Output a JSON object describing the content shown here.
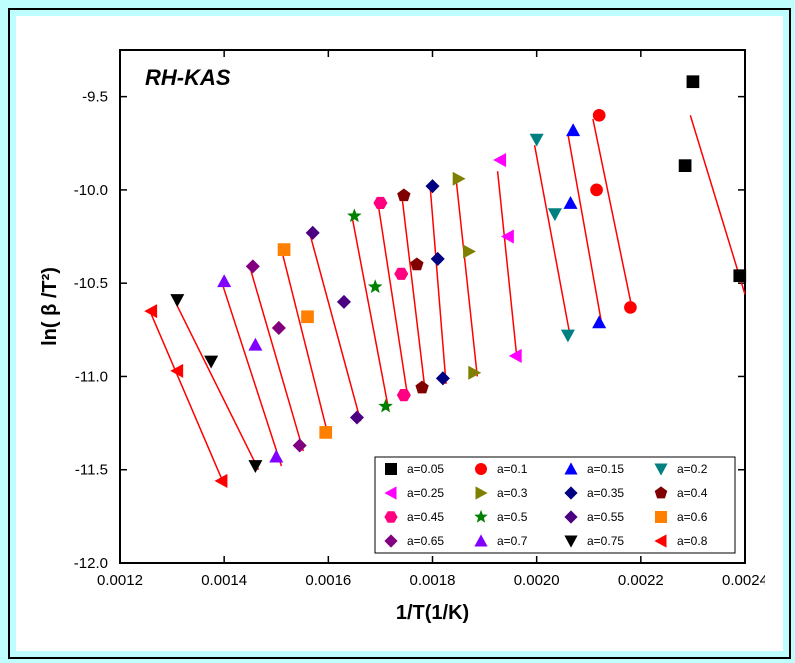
{
  "type": "scatter-with-fit-lines",
  "background_color": "#ffffff",
  "frame_color": "#000000",
  "page_bg": "#befefe",
  "title": "RH-KAS",
  "title_fontstyle": "italic",
  "title_fontweight": "bold",
  "title_fontsize": 22,
  "xlabel": "1/T(1/K)",
  "ylabel": "ln( β /T²)",
  "label_fontsize": 20,
  "tick_fontsize": 15,
  "xlim": [
    0.0012,
    0.0024
  ],
  "ylim": [
    -12.0,
    -9.25
  ],
  "xticks": [
    0.0012,
    0.0014,
    0.0016,
    0.0018,
    0.002,
    0.0022,
    0.0024
  ],
  "yticks": [
    -12.0,
    -11.5,
    -11.0,
    -10.5,
    -10.0,
    -9.5
  ],
  "fit_line_color": "#ff0000",
  "fit_line_width": 1.5,
  "marker_size": 9,
  "series": [
    {
      "label": "a=0.05",
      "marker": "square",
      "color": "#000000",
      "points": [
        [
          0.0023,
          -9.42
        ],
        [
          0.002285,
          -9.87
        ],
        [
          0.00239,
          -10.46
        ]
      ],
      "fit": [
        [
          0.002295,
          -9.6
        ],
        [
          0.0024,
          -10.56
        ]
      ]
    },
    {
      "label": "a=0.1",
      "marker": "circle",
      "color": "#ff0000",
      "points": [
        [
          0.00212,
          -9.6
        ],
        [
          0.002115,
          -10.0
        ],
        [
          0.00218,
          -10.63
        ]
      ],
      "fit": [
        [
          0.002108,
          -9.62
        ],
        [
          0.002182,
          -10.62
        ]
      ]
    },
    {
      "label": "a=0.15",
      "marker": "triangle-up",
      "color": "#0000ff",
      "points": [
        [
          0.00207,
          -9.68
        ],
        [
          0.002065,
          -10.07
        ],
        [
          0.00212,
          -10.71
        ]
      ],
      "fit": [
        [
          0.00206,
          -9.7
        ],
        [
          0.002125,
          -10.72
        ]
      ]
    },
    {
      "label": "a=0.2",
      "marker": "triangle-down",
      "color": "#008080",
      "points": [
        [
          0.002,
          -9.73
        ],
        [
          0.002035,
          -10.13
        ],
        [
          0.00206,
          -10.78
        ]
      ],
      "fit": [
        [
          0.001996,
          -9.76
        ],
        [
          0.002064,
          -10.78
        ]
      ]
    },
    {
      "label": "a=0.25",
      "marker": "triangle-left",
      "color": "#ff00ff",
      "points": [
        [
          0.00193,
          -9.84
        ],
        [
          0.001945,
          -10.25
        ],
        [
          0.00196,
          -10.89
        ]
      ],
      "fit": [
        [
          0.001925,
          -9.9
        ],
        [
          0.001962,
          -10.9
        ]
      ]
    },
    {
      "label": "a=0.3",
      "marker": "triangle-right",
      "color": "#808000",
      "points": [
        [
          0.00185,
          -9.94
        ],
        [
          0.00187,
          -10.33
        ],
        [
          0.00188,
          -10.98
        ]
      ],
      "fit": [
        [
          0.001846,
          -9.96
        ],
        [
          0.001886,
          -11.0
        ]
      ]
    },
    {
      "label": "a=0.35",
      "marker": "diamond",
      "color": "#000080",
      "points": [
        [
          0.0018,
          -9.98
        ],
        [
          0.00181,
          -10.37
        ],
        [
          0.00182,
          -11.01
        ]
      ],
      "fit": [
        [
          0.001796,
          -10.0
        ],
        [
          0.001826,
          -11.04
        ]
      ]
    },
    {
      "label": "a=0.4",
      "marker": "pentagon",
      "color": "#800000",
      "points": [
        [
          0.001745,
          -10.03
        ],
        [
          0.00177,
          -10.4
        ],
        [
          0.00178,
          -11.06
        ]
      ],
      "fit": [
        [
          0.001742,
          -10.05
        ],
        [
          0.001786,
          -11.08
        ]
      ]
    },
    {
      "label": "a=0.45",
      "marker": "hexagon",
      "color": "#ff0080",
      "points": [
        [
          0.0017,
          -10.07
        ],
        [
          0.00174,
          -10.45
        ],
        [
          0.001745,
          -11.1
        ]
      ],
      "fit": [
        [
          0.001697,
          -10.1
        ],
        [
          0.001753,
          -11.12
        ]
      ]
    },
    {
      "label": "a=0.5",
      "marker": "star",
      "color": "#008000",
      "points": [
        [
          0.00165,
          -10.14
        ],
        [
          0.00169,
          -10.52
        ],
        [
          0.00171,
          -11.16
        ]
      ],
      "fit": [
        [
          0.001646,
          -10.15
        ],
        [
          0.001716,
          -11.18
        ]
      ]
    },
    {
      "label": "a=0.55",
      "marker": "diamond",
      "color": "#4b0082",
      "points": [
        [
          0.00157,
          -10.23
        ],
        [
          0.00163,
          -10.6
        ],
        [
          0.001655,
          -11.22
        ]
      ],
      "fit": [
        [
          0.001565,
          -10.24
        ],
        [
          0.001662,
          -11.24
        ]
      ]
    },
    {
      "label": "a=0.6",
      "marker": "square",
      "color": "#ff8000",
      "points": [
        [
          0.001515,
          -10.32
        ],
        [
          0.00156,
          -10.68
        ],
        [
          0.001595,
          -11.3
        ]
      ],
      "fit": [
        [
          0.00151,
          -10.32
        ],
        [
          0.0016,
          -11.32
        ]
      ]
    },
    {
      "label": "a=0.65",
      "marker": "diamond",
      "color": "#800080",
      "points": [
        [
          0.001455,
          -10.41
        ],
        [
          0.001505,
          -10.74
        ],
        [
          0.001545,
          -11.37
        ]
      ],
      "fit": [
        [
          0.00145,
          -10.42
        ],
        [
          0.001552,
          -11.4
        ]
      ]
    },
    {
      "label": "a=0.7",
      "marker": "triangle-up",
      "color": "#8000ff",
      "points": [
        [
          0.0014,
          -10.49
        ],
        [
          0.00146,
          -10.83
        ],
        [
          0.0015,
          -11.43
        ]
      ],
      "fit": [
        [
          0.001396,
          -10.5
        ],
        [
          0.00151,
          -11.48
        ]
      ]
    },
    {
      "label": "a=0.75",
      "marker": "triangle-down",
      "color": "#000000",
      "points": [
        [
          0.00131,
          -10.59
        ],
        [
          0.001375,
          -10.92
        ],
        [
          0.00146,
          -11.48
        ]
      ],
      "fit": [
        [
          0.001306,
          -10.6
        ],
        [
          0.001466,
          -11.5
        ]
      ]
    },
    {
      "label": "a=0.8",
      "marker": "triangle-left",
      "color": "#ff0000",
      "points": [
        [
          0.00126,
          -10.65
        ],
        [
          0.00131,
          -10.97
        ],
        [
          0.001395,
          -11.56
        ]
      ],
      "fit": [
        [
          0.001256,
          -10.64
        ],
        [
          0.0014,
          -11.58
        ]
      ]
    }
  ],
  "legend": {
    "border_color": "#000000",
    "columns": 4,
    "entries": [
      "a=0.05",
      "a=0.1",
      "a=0.15",
      "a=0.2",
      "a=0.25",
      "a=0.3",
      "a=0.35",
      "a=0.4",
      "a=0.45",
      "a=0.5",
      "a=0.55",
      "a=0.6",
      "a=0.65",
      "a=0.7",
      "a=0.75",
      "a=0.8"
    ]
  }
}
